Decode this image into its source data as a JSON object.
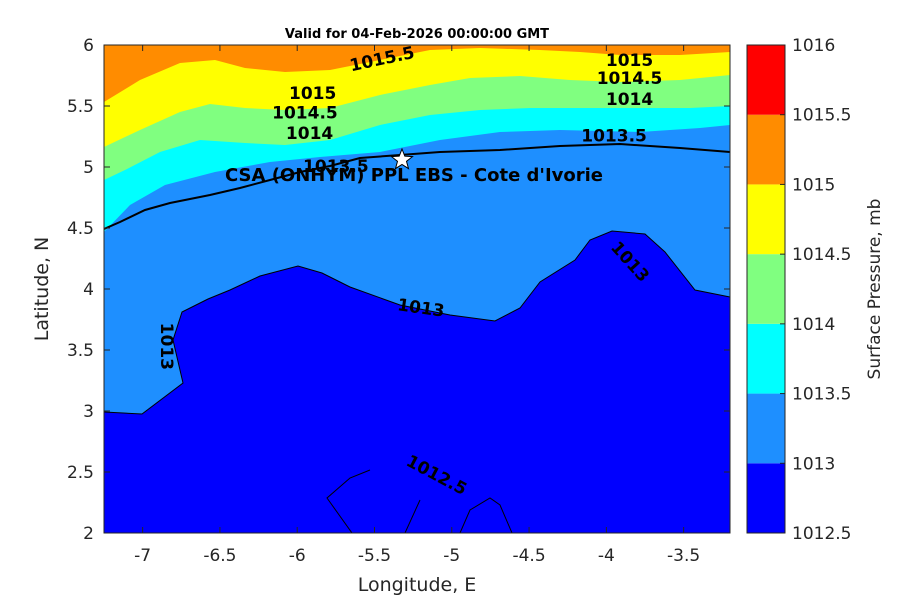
{
  "chart_data": {
    "type": "contour",
    "title": "Valid for 04-Feb-2026 00:00:00 GMT",
    "xlabel": "Longitude, E",
    "ylabel": "Latitude, N",
    "xlim": [
      -7.25,
      -3.2
    ],
    "ylim": [
      2,
      6
    ],
    "xticks": [
      "-7",
      "-6.5",
      "-6",
      "-5.5",
      "-5",
      "-4.5",
      "-4",
      "-3.5"
    ],
    "xtick_values": [
      -7,
      -6.5,
      -6,
      -5.5,
      -5,
      -4.5,
      -4,
      -3.5
    ],
    "yticks": [
      "6",
      "5.5",
      "5",
      "4.5",
      "4",
      "3.5",
      "3",
      "2.5",
      "2"
    ],
    "ytick_values": [
      6,
      5.5,
      5,
      4.5,
      4,
      3.5,
      3,
      2.5,
      2
    ],
    "colorbar": {
      "label": "Surface Pressure, mb",
      "levels": [
        1012.5,
        1013,
        1013.5,
        1014,
        1014.5,
        1015,
        1015.5,
        1016
      ],
      "tick_labels": [
        "1016",
        "1015.5",
        "1015",
        "1014.5",
        "1014",
        "1013.5",
        "1013",
        "1012.5"
      ],
      "colors": [
        "#0000ff",
        "#1e8fff",
        "#00ffff",
        "#80ff80",
        "#ffff00",
        "#ff8c00",
        "#ff0000",
        "#8b0000"
      ]
    },
    "contour_labels": [
      {
        "text": "1015.5",
        "lon": -5.45,
        "lat": 5.88,
        "angle": -12
      },
      {
        "text": "1015",
        "lon": -3.85,
        "lat": 5.87,
        "angle": 0
      },
      {
        "text": "1014.5",
        "lon": -3.85,
        "lat": 5.72,
        "angle": 0
      },
      {
        "text": "1014",
        "lon": -3.85,
        "lat": 5.55,
        "angle": 0
      },
      {
        "text": "1013.5",
        "lon": -3.95,
        "lat": 5.25,
        "angle": 0
      },
      {
        "text": "1015",
        "lon": -5.9,
        "lat": 5.6,
        "angle": 0
      },
      {
        "text": "1014.5",
        "lon": -5.95,
        "lat": 5.44,
        "angle": 0
      },
      {
        "text": "1014",
        "lon": -5.92,
        "lat": 5.27,
        "angle": 0
      },
      {
        "text": "1013.5",
        "lon": -5.75,
        "lat": 5.0,
        "angle": 0
      },
      {
        "text": "1013",
        "lon": -5.2,
        "lat": 3.84,
        "angle": 8
      },
      {
        "text": "1013",
        "lon": -3.85,
        "lat": 4.22,
        "angle": 48
      },
      {
        "text": "1013",
        "lon": -6.85,
        "lat": 3.53,
        "angle": 90
      },
      {
        "text": "1012.5",
        "lon": -5.1,
        "lat": 2.47,
        "angle": 28
      }
    ],
    "site": {
      "label": "CSA (ONHYM) PPL EBS  - Cote d'Ivorie",
      "lon": -5.35,
      "lat": 5.05
    }
  }
}
